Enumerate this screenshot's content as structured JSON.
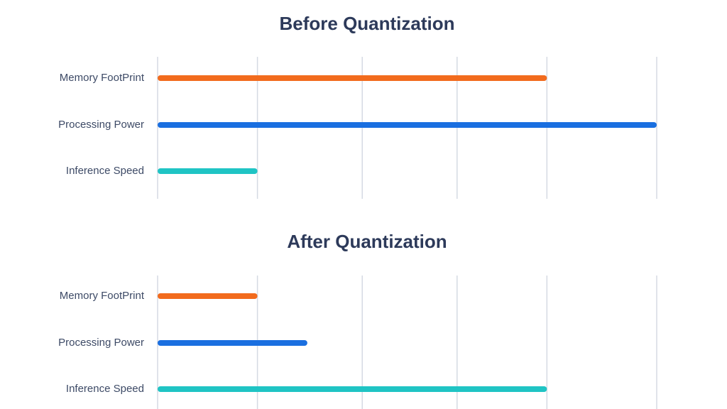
{
  "chart_data": [
    {
      "type": "bar",
      "orientation": "horizontal",
      "title": "Before Quantization",
      "categories": [
        "Memory FootPrint",
        "Processing Power",
        "Inference Speed"
      ],
      "values": [
        78,
        100,
        20
      ],
      "colors": [
        "#f26b1d",
        "#1a6fe0",
        "#1fc4c4"
      ],
      "xlim": [
        0,
        100
      ],
      "xticks": [
        0,
        20,
        41,
        60,
        78,
        100
      ],
      "grid": true
    },
    {
      "type": "bar",
      "orientation": "horizontal",
      "title": "After Quantization",
      "categories": [
        "Memory FootPrint",
        "Processing Power",
        "Inference Speed"
      ],
      "values": [
        20,
        30,
        78
      ],
      "colors": [
        "#f26b1d",
        "#1a6fe0",
        "#1fc4c4"
      ],
      "xlim": [
        0,
        100
      ],
      "xticks": [
        0,
        20,
        41,
        60,
        78,
        100
      ],
      "grid": true
    }
  ]
}
